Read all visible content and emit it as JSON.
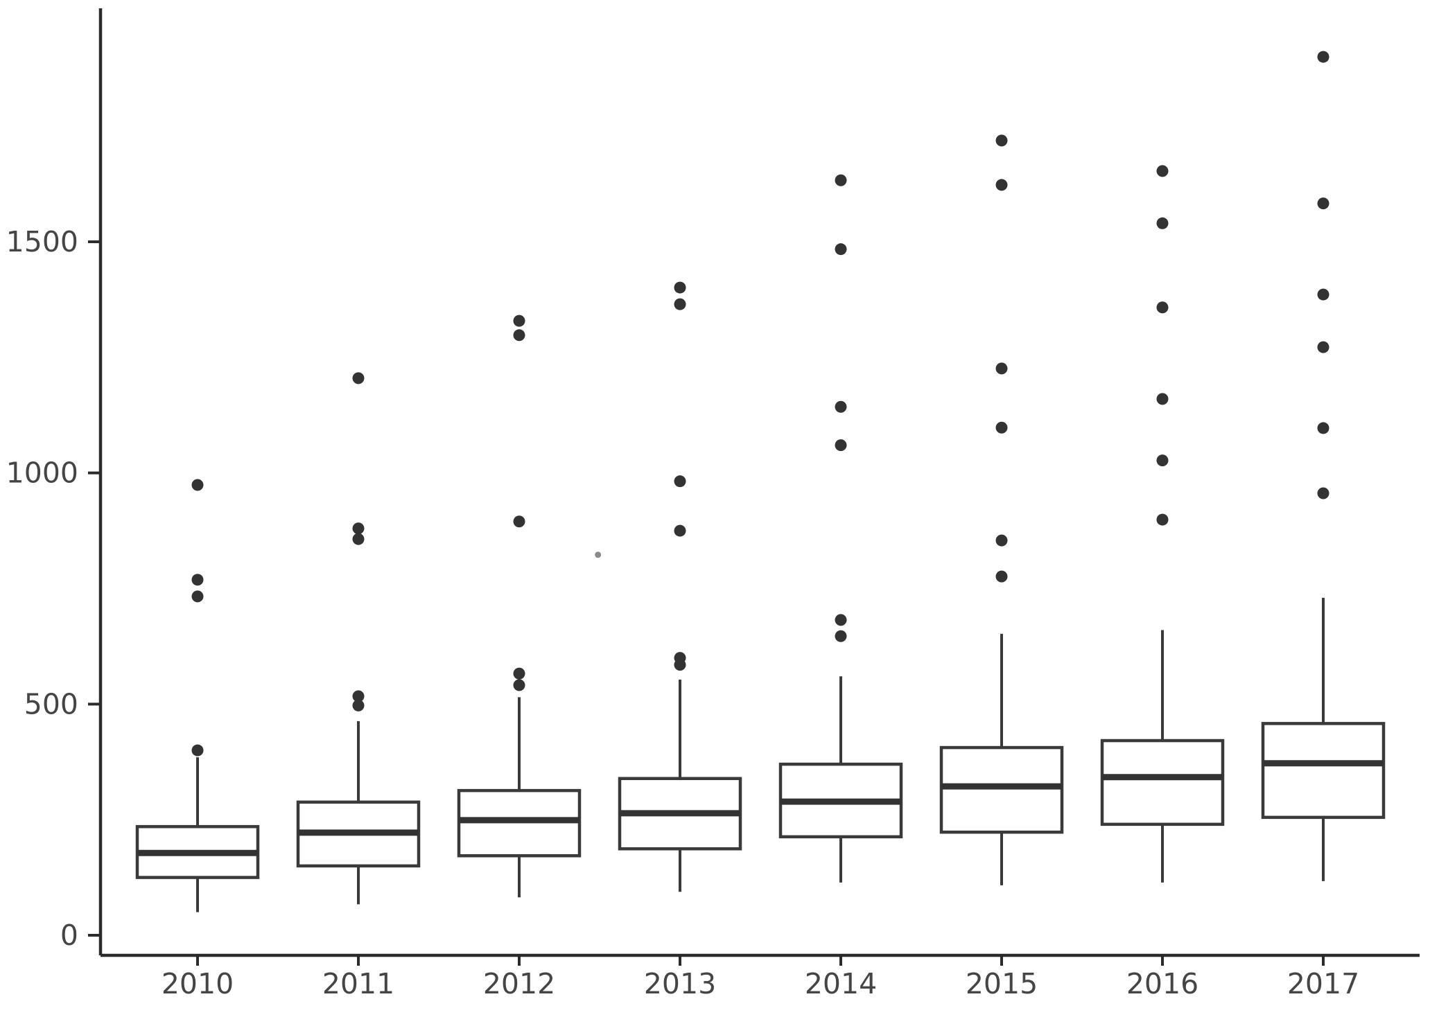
{
  "page": {
    "background_color": "#ffffff"
  },
  "chart_data": {
    "type": "boxplot",
    "title": "",
    "subtitle": "",
    "xlabel": "",
    "ylabel": "",
    "legend": null,
    "grid": false,
    "orientation": "vertical",
    "x_tick_labels": [
      "2010",
      "2011",
      "2012",
      "2013",
      "2014",
      "2015",
      "2016",
      "2017"
    ],
    "y_tick_labels": [
      "0",
      "500",
      "1000",
      "1500"
    ],
    "y_ticks": [
      0,
      500,
      1000,
      1500
    ],
    "y_axis_range": [
      -45,
      2000
    ],
    "series": [
      {
        "category": "2010",
        "whisker_low": 50,
        "q1": 125,
        "median": 178,
        "q3": 235,
        "whisker_high": 385,
        "outliers": [
          400,
          733,
          769,
          974
        ]
      },
      {
        "category": "2011",
        "whisker_low": 67,
        "q1": 150,
        "median": 222,
        "q3": 288,
        "whisker_high": 463,
        "outliers": [
          497,
          517,
          857,
          880,
          1205
        ]
      },
      {
        "category": "2012",
        "whisker_low": 82,
        "q1": 172,
        "median": 249,
        "q3": 313,
        "whisker_high": 515,
        "outliers": [
          541,
          566,
          895,
          1298,
          1329
        ]
      },
      {
        "category": "2013",
        "whisker_low": 94,
        "q1": 187,
        "median": 264,
        "q3": 339,
        "whisker_high": 553,
        "outliers": [
          585,
          600,
          875,
          982,
          1365,
          1401
        ]
      },
      {
        "category": "2014",
        "whisker_low": 114,
        "q1": 213,
        "median": 289,
        "q3": 370,
        "whisker_high": 560,
        "outliers": [
          647,
          682,
          1060,
          1143,
          1484,
          1633
        ]
      },
      {
        "category": "2015",
        "whisker_low": 108,
        "q1": 223,
        "median": 322,
        "q3": 406,
        "whisker_high": 652,
        "outliers": [
          776,
          854,
          1098,
          1226,
          1623,
          1719
        ]
      },
      {
        "category": "2016",
        "whisker_low": 114,
        "q1": 240,
        "median": 342,
        "q3": 421,
        "whisker_high": 660,
        "outliers": [
          899,
          1027,
          1160,
          1358,
          1540,
          1653
        ]
      },
      {
        "category": "2017",
        "whisker_low": 117,
        "q1": 255,
        "median": 372,
        "q3": 458,
        "whisker_high": 730,
        "outliers": [
          956,
          1097,
          1272,
          1386,
          1583,
          1900
        ]
      }
    ],
    "stray_mark": {
      "description": "small faint stray dot between 2012 and 2013 columns",
      "value": 823,
      "x_offset_categories": 2.49
    },
    "colors": {
      "box_stroke": "#3a3a3a",
      "box_fill": "#ffffff",
      "median_stroke": "#333333",
      "whisker_stroke": "#3a3a3a",
      "outlier_fill": "#333333",
      "axis_line": "#2b2b2b",
      "tick_label": "#454545",
      "stray_dot": "#8a8a8a",
      "background": "#ffffff"
    }
  }
}
